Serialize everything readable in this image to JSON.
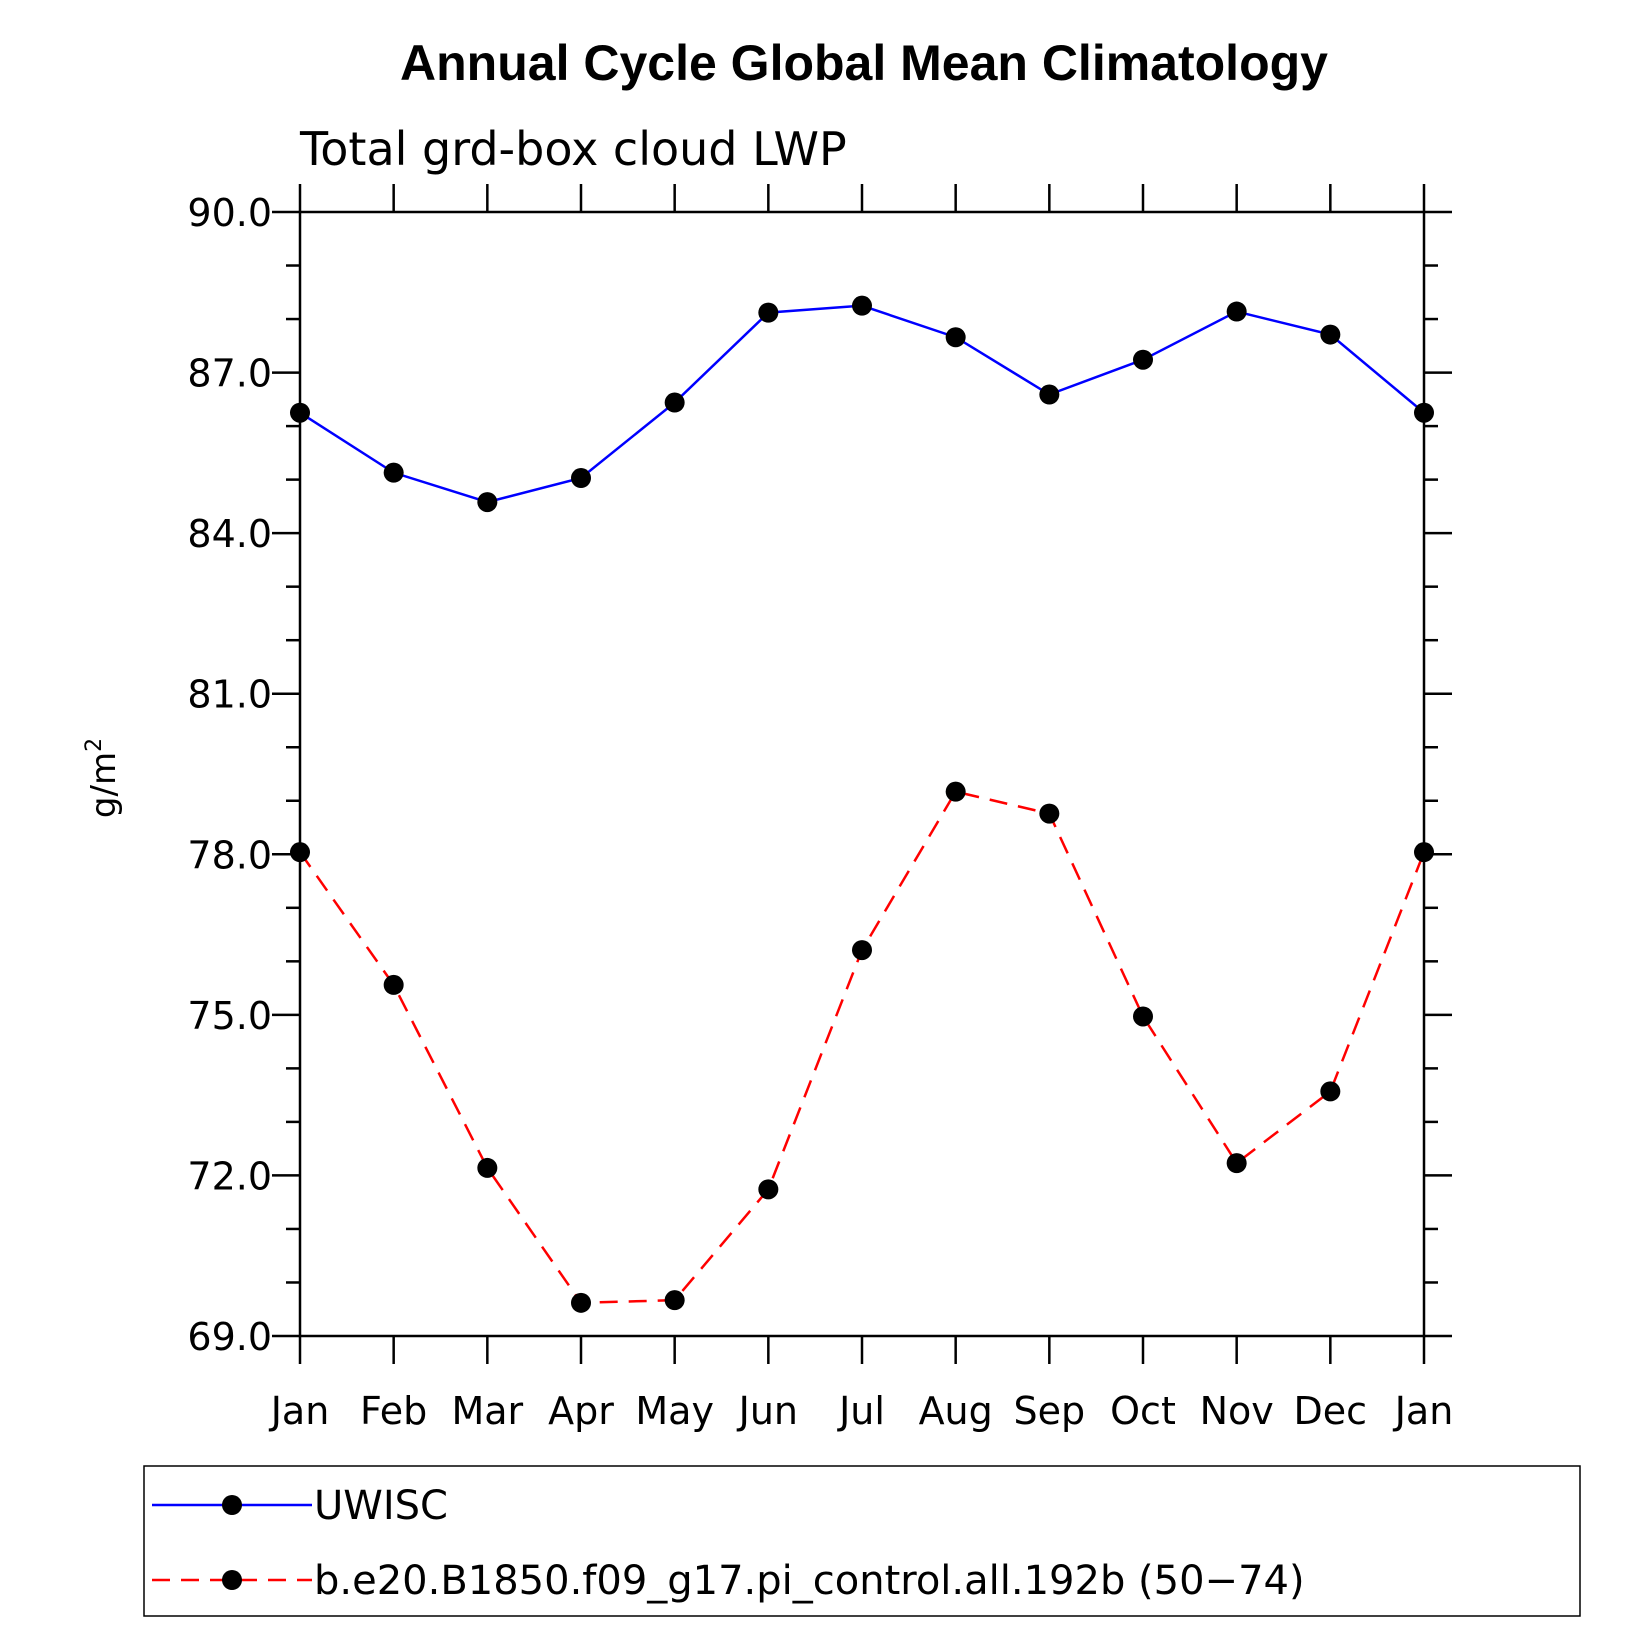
{
  "chart_data": {
    "type": "line",
    "title": "Annual Cycle Global Mean Climatology",
    "subtitle": "Total grd-box cloud LWP",
    "ylabel_base": "g/m",
    "ylabel_sup": "2",
    "xlabel": "",
    "categories": [
      "Jan",
      "Feb",
      "Mar",
      "Apr",
      "May",
      "Jun",
      "Jul",
      "Aug",
      "Sep",
      "Oct",
      "Nov",
      "Dec",
      "Jan"
    ],
    "ylim": [
      69.0,
      90.0
    ],
    "yticks": [
      "69.0",
      "72.0",
      "75.0",
      "78.0",
      "81.0",
      "84.0",
      "87.0",
      "90.0"
    ],
    "grid": false,
    "legend_position": "bottom",
    "series": [
      {
        "name": "UWISC",
        "color": "#0000ff",
        "dash": "solid",
        "values": [
          86.25,
          85.13,
          84.58,
          85.03,
          86.44,
          88.12,
          88.25,
          87.66,
          86.59,
          87.24,
          88.14,
          87.71,
          86.25
        ]
      },
      {
        "name": "b.e20.B1850.f09_g17.pi_control.all.192b (50−74)",
        "color": "#ff0000",
        "dash": "dashed",
        "values": [
          78.04,
          75.56,
          72.14,
          69.62,
          69.67,
          71.74,
          76.21,
          79.17,
          78.76,
          74.97,
          72.23,
          73.57,
          78.04
        ]
      }
    ]
  }
}
